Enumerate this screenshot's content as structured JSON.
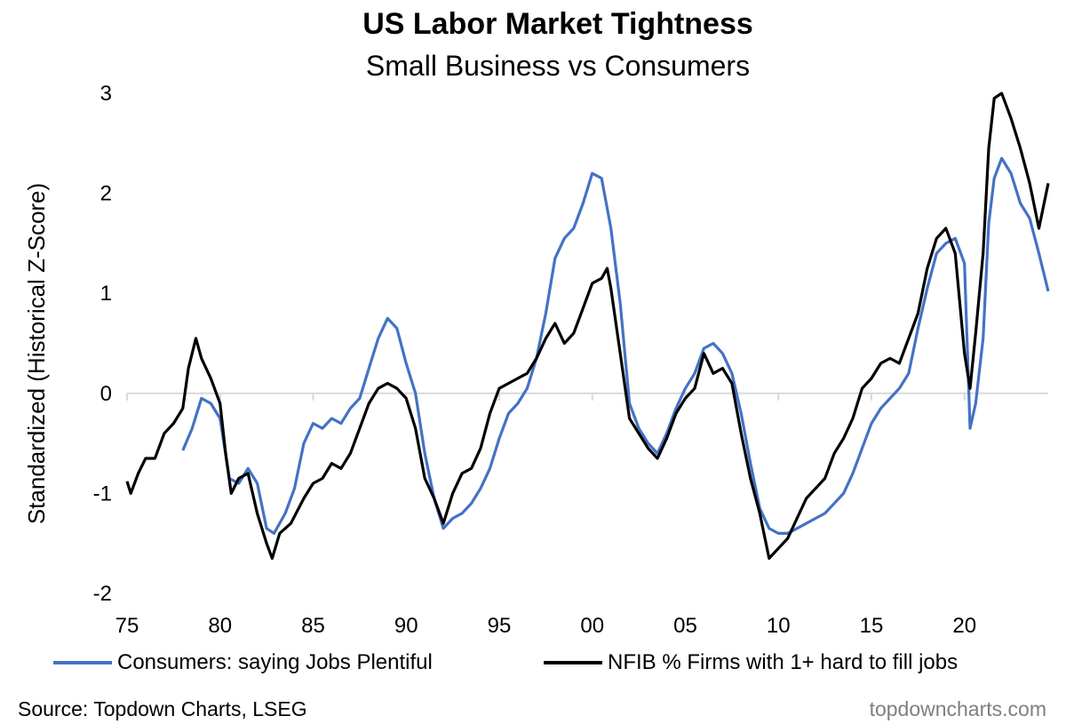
{
  "chart_data": {
    "type": "line",
    "title": "US Labor Market Tightness",
    "subtitle": "Small Business vs Consumers",
    "ylabel": "Standardized (Historical Z-Score)",
    "xlabel": "",
    "xlim": [
      1975,
      2024.5
    ],
    "ylim": [
      -2,
      3
    ],
    "yticks": [
      -2,
      -1,
      0,
      1,
      2,
      3
    ],
    "ytick_labels": [
      "-2",
      "-1",
      "0",
      "1",
      "2",
      "3"
    ],
    "xticks": [
      1975,
      1980,
      1985,
      1990,
      1995,
      2000,
      2005,
      2010,
      2015,
      2020
    ],
    "xtick_labels": [
      "75",
      "80",
      "85",
      "90",
      "95",
      "00",
      "05",
      "10",
      "15",
      "20"
    ],
    "zero_line": true,
    "grid": false,
    "legend_position": "bottom",
    "series": [
      {
        "name": "Consumers: saying Jobs Plentiful",
        "color": "#4472c4",
        "points": [
          [
            1978.0,
            -0.57
          ],
          [
            1978.5,
            -0.35
          ],
          [
            1979.0,
            -0.05
          ],
          [
            1979.5,
            -0.1
          ],
          [
            1980.0,
            -0.25
          ],
          [
            1980.5,
            -0.85
          ],
          [
            1981.0,
            -0.9
          ],
          [
            1981.5,
            -0.75
          ],
          [
            1982.0,
            -0.9
          ],
          [
            1982.5,
            -1.35
          ],
          [
            1982.9,
            -1.4
          ],
          [
            1983.5,
            -1.2
          ],
          [
            1984.0,
            -0.95
          ],
          [
            1984.5,
            -0.5
          ],
          [
            1985.0,
            -0.3
          ],
          [
            1985.5,
            -0.35
          ],
          [
            1986.0,
            -0.25
          ],
          [
            1986.5,
            -0.3
          ],
          [
            1987.0,
            -0.15
          ],
          [
            1987.5,
            -0.05
          ],
          [
            1988.0,
            0.25
          ],
          [
            1988.5,
            0.55
          ],
          [
            1989.0,
            0.75
          ],
          [
            1989.5,
            0.65
          ],
          [
            1990.0,
            0.3
          ],
          [
            1990.5,
            0.0
          ],
          [
            1991.0,
            -0.6
          ],
          [
            1991.5,
            -1.05
          ],
          [
            1992.0,
            -1.35
          ],
          [
            1992.5,
            -1.25
          ],
          [
            1993.0,
            -1.2
          ],
          [
            1993.5,
            -1.1
          ],
          [
            1994.0,
            -0.95
          ],
          [
            1994.5,
            -0.75
          ],
          [
            1995.0,
            -0.45
          ],
          [
            1995.5,
            -0.2
          ],
          [
            1996.0,
            -0.1
          ],
          [
            1996.5,
            0.05
          ],
          [
            1997.0,
            0.35
          ],
          [
            1997.5,
            0.8
          ],
          [
            1998.0,
            1.35
          ],
          [
            1998.5,
            1.55
          ],
          [
            1999.0,
            1.65
          ],
          [
            1999.5,
            1.9
          ],
          [
            2000.0,
            2.2
          ],
          [
            2000.5,
            2.15
          ],
          [
            2001.0,
            1.65
          ],
          [
            2001.5,
            0.9
          ],
          [
            2002.0,
            -0.1
          ],
          [
            2002.5,
            -0.35
          ],
          [
            2003.0,
            -0.5
          ],
          [
            2003.5,
            -0.6
          ],
          [
            2004.0,
            -0.4
          ],
          [
            2004.5,
            -0.15
          ],
          [
            2005.0,
            0.05
          ],
          [
            2005.5,
            0.2
          ],
          [
            2006.0,
            0.45
          ],
          [
            2006.5,
            0.5
          ],
          [
            2007.0,
            0.4
          ],
          [
            2007.5,
            0.2
          ],
          [
            2008.0,
            -0.2
          ],
          [
            2008.5,
            -0.7
          ],
          [
            2009.0,
            -1.15
          ],
          [
            2009.5,
            -1.35
          ],
          [
            2010.0,
            -1.4
          ],
          [
            2010.5,
            -1.4
          ],
          [
            2011.0,
            -1.35
          ],
          [
            2011.5,
            -1.3
          ],
          [
            2012.0,
            -1.25
          ],
          [
            2012.5,
            -1.2
          ],
          [
            2013.0,
            -1.1
          ],
          [
            2013.5,
            -1.0
          ],
          [
            2014.0,
            -0.8
          ],
          [
            2014.5,
            -0.55
          ],
          [
            2015.0,
            -0.3
          ],
          [
            2015.5,
            -0.15
          ],
          [
            2016.0,
            -0.05
          ],
          [
            2016.5,
            0.05
          ],
          [
            2017.0,
            0.2
          ],
          [
            2017.5,
            0.65
          ],
          [
            2018.0,
            1.05
          ],
          [
            2018.5,
            1.4
          ],
          [
            2019.0,
            1.5
          ],
          [
            2019.5,
            1.55
          ],
          [
            2020.0,
            1.3
          ],
          [
            2020.3,
            -0.35
          ],
          [
            2020.6,
            -0.1
          ],
          [
            2021.0,
            0.55
          ],
          [
            2021.3,
            1.7
          ],
          [
            2021.6,
            2.15
          ],
          [
            2022.0,
            2.35
          ],
          [
            2022.5,
            2.2
          ],
          [
            2023.0,
            1.9
          ],
          [
            2023.5,
            1.75
          ],
          [
            2024.0,
            1.4
          ],
          [
            2024.5,
            1.02
          ]
        ]
      },
      {
        "name": "NFIB % Firms with 1+ hard to fill jobs",
        "color": "#000000",
        "points": [
          [
            1975.0,
            -0.88
          ],
          [
            1975.2,
            -1.0
          ],
          [
            1975.6,
            -0.8
          ],
          [
            1976.0,
            -0.65
          ],
          [
            1976.5,
            -0.65
          ],
          [
            1977.0,
            -0.4
          ],
          [
            1977.5,
            -0.3
          ],
          [
            1978.0,
            -0.15
          ],
          [
            1978.3,
            0.25
          ],
          [
            1978.7,
            0.55
          ],
          [
            1979.0,
            0.35
          ],
          [
            1979.5,
            0.15
          ],
          [
            1980.0,
            -0.1
          ],
          [
            1980.3,
            -0.6
          ],
          [
            1980.6,
            -1.0
          ],
          [
            1981.0,
            -0.85
          ],
          [
            1981.5,
            -0.8
          ],
          [
            1982.0,
            -1.2
          ],
          [
            1982.5,
            -1.5
          ],
          [
            1982.8,
            -1.65
          ],
          [
            1983.2,
            -1.4
          ],
          [
            1983.8,
            -1.3
          ],
          [
            1984.5,
            -1.05
          ],
          [
            1985.0,
            -0.9
          ],
          [
            1985.5,
            -0.85
          ],
          [
            1986.0,
            -0.7
          ],
          [
            1986.5,
            -0.75
          ],
          [
            1987.0,
            -0.6
          ],
          [
            1987.5,
            -0.35
          ],
          [
            1988.0,
            -0.1
          ],
          [
            1988.5,
            0.05
          ],
          [
            1989.0,
            0.1
          ],
          [
            1989.5,
            0.05
          ],
          [
            1990.0,
            -0.05
          ],
          [
            1990.5,
            -0.35
          ],
          [
            1991.0,
            -0.85
          ],
          [
            1991.5,
            -1.05
          ],
          [
            1992.0,
            -1.3
          ],
          [
            1992.5,
            -1.0
          ],
          [
            1993.0,
            -0.8
          ],
          [
            1993.5,
            -0.75
          ],
          [
            1994.0,
            -0.55
          ],
          [
            1994.5,
            -0.2
          ],
          [
            1995.0,
            0.05
          ],
          [
            1995.5,
            0.1
          ],
          [
            1996.0,
            0.15
          ],
          [
            1996.5,
            0.2
          ],
          [
            1997.0,
            0.35
          ],
          [
            1997.5,
            0.55
          ],
          [
            1998.0,
            0.7
          ],
          [
            1998.5,
            0.5
          ],
          [
            1999.0,
            0.6
          ],
          [
            1999.5,
            0.85
          ],
          [
            2000.0,
            1.1
          ],
          [
            2000.5,
            1.15
          ],
          [
            2000.8,
            1.25
          ],
          [
            2001.0,
            1.05
          ],
          [
            2001.5,
            0.4
          ],
          [
            2002.0,
            -0.25
          ],
          [
            2002.5,
            -0.4
          ],
          [
            2003.0,
            -0.55
          ],
          [
            2003.5,
            -0.65
          ],
          [
            2004.0,
            -0.45
          ],
          [
            2004.5,
            -0.2
          ],
          [
            2005.0,
            -0.05
          ],
          [
            2005.5,
            0.05
          ],
          [
            2006.0,
            0.4
          ],
          [
            2006.5,
            0.2
          ],
          [
            2007.0,
            0.25
          ],
          [
            2007.5,
            0.1
          ],
          [
            2008.0,
            -0.4
          ],
          [
            2008.5,
            -0.85
          ],
          [
            2009.0,
            -1.2
          ],
          [
            2009.5,
            -1.65
          ],
          [
            2010.0,
            -1.55
          ],
          [
            2010.5,
            -1.45
          ],
          [
            2011.0,
            -1.25
          ],
          [
            2011.5,
            -1.05
          ],
          [
            2012.0,
            -0.95
          ],
          [
            2012.5,
            -0.85
          ],
          [
            2013.0,
            -0.6
          ],
          [
            2013.5,
            -0.45
          ],
          [
            2014.0,
            -0.25
          ],
          [
            2014.5,
            0.05
          ],
          [
            2015.0,
            0.15
          ],
          [
            2015.5,
            0.3
          ],
          [
            2016.0,
            0.35
          ],
          [
            2016.5,
            0.3
          ],
          [
            2017.0,
            0.55
          ],
          [
            2017.5,
            0.8
          ],
          [
            2018.0,
            1.25
          ],
          [
            2018.5,
            1.55
          ],
          [
            2019.0,
            1.65
          ],
          [
            2019.5,
            1.4
          ],
          [
            2020.0,
            0.4
          ],
          [
            2020.3,
            0.05
          ],
          [
            2020.6,
            0.6
          ],
          [
            2021.0,
            1.4
          ],
          [
            2021.3,
            2.45
          ],
          [
            2021.6,
            2.95
          ],
          [
            2022.0,
            3.0
          ],
          [
            2022.5,
            2.75
          ],
          [
            2023.0,
            2.45
          ],
          [
            2023.5,
            2.1
          ],
          [
            2024.0,
            1.65
          ],
          [
            2024.5,
            2.1
          ]
        ]
      }
    ]
  },
  "source": "Source: Topdown Charts, LSEG",
  "credit": "topdowncharts.com"
}
